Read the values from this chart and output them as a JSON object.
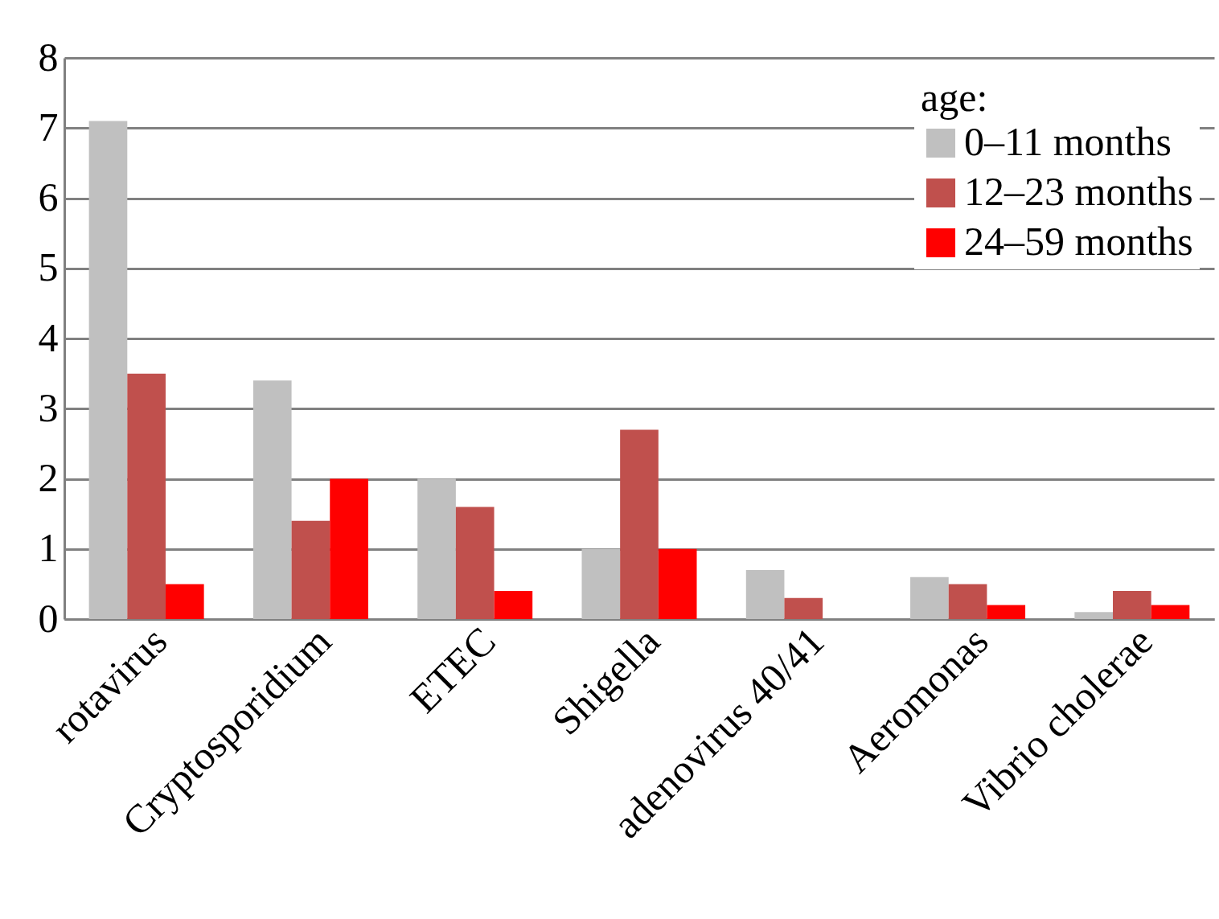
{
  "chart_data": {
    "type": "bar",
    "categories": [
      "rotavirus",
      "Cryptosporidium",
      "ETEC",
      "Shigella",
      "adenovirus 40/41",
      "Aeromonas",
      "Vibrio cholerae"
    ],
    "series": [
      {
        "name": "0–11 months",
        "color": "#c0c0c0",
        "values": [
          7.1,
          3.4,
          2.0,
          1.0,
          0.7,
          0.6,
          0.1
        ]
      },
      {
        "name": "12–23 months",
        "color": "#c0504d",
        "values": [
          3.5,
          1.4,
          1.6,
          2.7,
          0.3,
          0.5,
          0.4
        ]
      },
      {
        "name": "24–59 months",
        "color": "#ff0000",
        "values": [
          0.5,
          2.0,
          0.4,
          1.0,
          null,
          0.2,
          0.2
        ]
      }
    ],
    "legend_title": "age:",
    "legend": "top right",
    "grid": "y",
    "ylim": [
      0,
      8
    ],
    "yticks": [
      0,
      1,
      2,
      3,
      4,
      5,
      6,
      7,
      8
    ]
  }
}
